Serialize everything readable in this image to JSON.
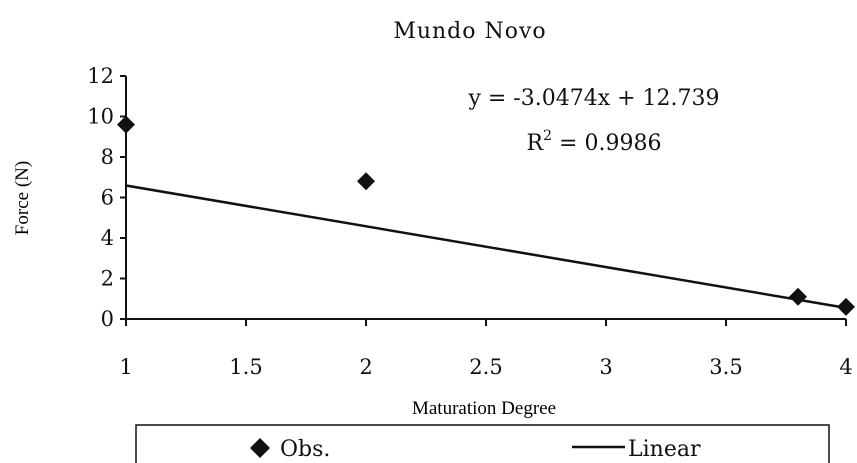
{
  "chart_data": {
    "type": "scatter",
    "title": "Mundo Novo",
    "xlabel": "Maturation Degree",
    "ylabel": "Force (N)",
    "xlim": [
      1,
      4
    ],
    "ylim": [
      0,
      12
    ],
    "x_ticks": [
      "1",
      "1.5",
      "2",
      "2.5",
      "3",
      "3.5",
      "4"
    ],
    "y_ticks": [
      "0",
      "2",
      "4",
      "6",
      "8",
      "10",
      "12"
    ],
    "series": [
      {
        "name": "Obs.",
        "marker": "diamond",
        "points": [
          {
            "x": 1.0,
            "y": 9.6
          },
          {
            "x": 2.0,
            "y": 6.8
          },
          {
            "x": 3.8,
            "y": 1.1
          },
          {
            "x": 4.0,
            "y": 0.6
          }
        ]
      },
      {
        "name": "Linear",
        "type": "line",
        "slope": -3.0474,
        "intercept": 12.739
      }
    ],
    "annotations": {
      "equation": "y = -3.0474x + 12.739",
      "r2_base": "R",
      "r2_sup": "2",
      "r2_value": " = 0.9986"
    },
    "legend": {
      "placement": "bottom",
      "obs_label": "Obs.",
      "linear_label": "Linear"
    },
    "grid": false,
    "colors": {
      "series": "#111111"
    }
  }
}
